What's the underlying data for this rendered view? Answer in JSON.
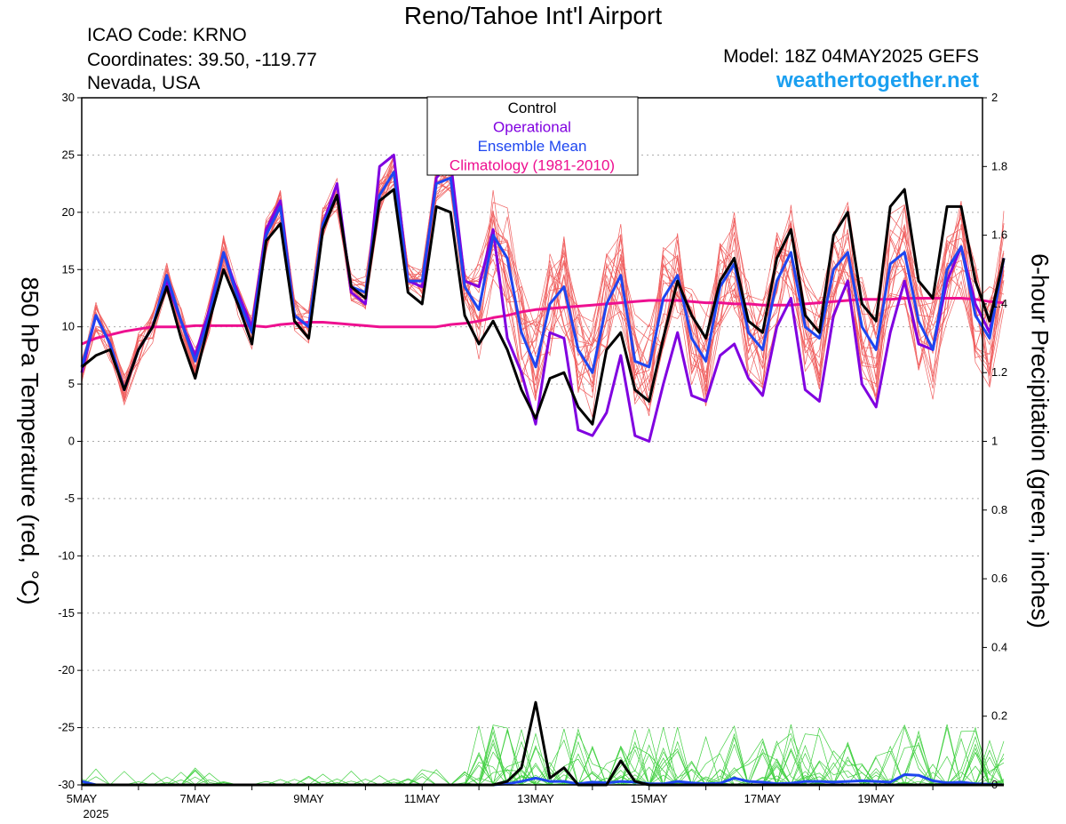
{
  "header": {
    "title": "Reno/Tahoe Int'l Airport",
    "icao": "ICAO Code: KRNO",
    "coordinates": "Coordinates: 39.50, -119.77",
    "region": "Nevada, USA",
    "model": "Model: 18Z 04MAY2025 GEFS",
    "site": "weathertogether.net"
  },
  "colors": {
    "control": "#000000",
    "operational": "#8000e0",
    "ensemble_mean": "#1e46f0",
    "climatology": "#ee1090",
    "members_temp": "#f06060",
    "members_precip": "#40d040",
    "site": "#1a9ff0"
  },
  "legend": [
    {
      "label": "Control",
      "color": "#000000"
    },
    {
      "label": "Operational",
      "color": "#8000e0"
    },
    {
      "label": "Ensemble Mean",
      "color": "#1e46f0"
    },
    {
      "label": "Climatology (1981-2010)",
      "color": "#ee1090"
    }
  ],
  "chart_data": {
    "type": "line",
    "ylabel": "850 hPa Temperature (red, °C)",
    "y2label": "6-hour Precipitation (green, inches)",
    "ylim": [
      -30,
      30
    ],
    "y2lim": [
      0,
      2
    ],
    "yticks": [
      "30",
      "25",
      "20",
      "15",
      "10",
      "5",
      "0",
      "-5",
      "-10",
      "-15",
      "-20",
      "-25",
      "-30"
    ],
    "y2ticks": [
      "2",
      "1.8",
      "1.6",
      "1.4",
      "1.2",
      "1",
      "0.8",
      "0.6",
      "0.4",
      "0.2",
      "0"
    ],
    "xlim_days": [
      0,
      15.875
    ],
    "xtick_labels": [
      "5MAY",
      "7MAY",
      "9MAY",
      "11MAY",
      "13MAY",
      "15MAY",
      "17MAY",
      "19MAY"
    ],
    "xtick_days": [
      0,
      2,
      4,
      6,
      8,
      10,
      12,
      14
    ],
    "xyear": "2025",
    "grid": true,
    "legend_position": "top-center",
    "time_step_hours": 6,
    "series": [
      {
        "name": "Control",
        "axis": "left",
        "values": [
          6.5,
          7.5,
          8,
          4.5,
          8,
          10,
          13.5,
          9,
          5.5,
          10.5,
          15,
          12,
          8.5,
          17.5,
          19,
          10.5,
          9,
          18.5,
          21.5,
          13.5,
          12.5,
          21,
          22,
          13,
          12,
          20.5,
          20,
          11,
          8.5,
          10.5,
          8,
          4.5,
          2,
          5.5,
          6,
          3,
          1.5,
          8,
          9.5,
          4.5,
          3.5,
          9,
          14,
          11,
          9,
          14,
          16,
          10.5,
          9.5,
          16,
          18.5,
          11,
          9.5,
          18,
          20,
          12,
          10.5,
          20.5,
          22,
          14,
          12.5,
          20.5,
          20.5,
          14,
          10.5,
          16
        ]
      },
      {
        "name": "Operational",
        "axis": "left",
        "values": [
          6,
          11,
          8.5,
          4.5,
          8,
          10,
          14,
          10.5,
          7.5,
          11.5,
          16.5,
          13,
          10,
          18.5,
          21,
          11,
          10,
          19,
          22.5,
          13,
          12,
          24,
          25,
          14,
          13.5,
          23,
          24.5,
          14,
          13.5,
          18.5,
          9,
          6,
          1.5,
          9.5,
          9,
          1,
          0.5,
          2.5,
          7.5,
          0.5,
          0,
          5,
          9.5,
          4,
          3.5,
          7.5,
          8.5,
          5.5,
          4,
          10,
          12.5,
          4.5,
          3.5,
          11,
          14,
          5,
          3,
          9.5,
          14,
          8.5,
          8,
          14,
          17,
          12,
          9.5,
          16
        ]
      },
      {
        "name": "Ensemble Mean",
        "axis": "left",
        "values": [
          6.5,
          11,
          8.5,
          4.5,
          8,
          10,
          14.5,
          10.5,
          7,
          11,
          16.5,
          12.5,
          9.5,
          18,
          20.5,
          11,
          10,
          19,
          21.5,
          13.5,
          13,
          21.5,
          23.5,
          14,
          14,
          22.5,
          23,
          13.5,
          11.5,
          18,
          16,
          9.5,
          6.5,
          12,
          13.5,
          8,
          6,
          12,
          14.5,
          7,
          6.5,
          12.5,
          14.5,
          9,
          7,
          13.5,
          15.5,
          9.5,
          8,
          14,
          16.5,
          10,
          9,
          15,
          16.5,
          10,
          8,
          15.5,
          16.5,
          10.5,
          8,
          15,
          17,
          11,
          9,
          16
        ]
      },
      {
        "name": "Climatology (1981-2010)",
        "axis": "left",
        "values": [
          8.5,
          9,
          9.3,
          9.6,
          9.8,
          10,
          10,
          10,
          10.1,
          10.1,
          10.1,
          10.1,
          10.1,
          10,
          10.2,
          10.3,
          10.4,
          10.4,
          10.3,
          10.2,
          10.1,
          10,
          10,
          10,
          10,
          10,
          10.2,
          10.3,
          10.5,
          10.8,
          11,
          11.3,
          11.5,
          11.6,
          11.7,
          11.8,
          11.9,
          12,
          12.1,
          12.2,
          12.3,
          12.3,
          12.3,
          12.2,
          12.1,
          12.1,
          12,
          12,
          11.9,
          11.9,
          11.9,
          12,
          12.1,
          12.2,
          12.3,
          12.4,
          12.4,
          12.4,
          12.5,
          12.5,
          12.5,
          12.5,
          12.5,
          12.4,
          12.2,
          12.1
        ]
      },
      {
        "name": "Control",
        "axis": "right",
        "values": [
          0,
          0,
          0,
          0,
          0,
          0,
          0,
          0,
          0,
          0,
          0,
          0,
          0,
          0,
          0,
          0,
          0,
          0,
          0,
          0,
          0,
          0,
          0,
          0,
          0,
          0,
          0,
          0,
          0,
          0,
          0.01,
          0.05,
          0.24,
          0.02,
          0.05,
          0,
          0,
          0,
          0.07,
          0.01,
          0,
          0,
          0,
          0,
          0,
          0,
          0,
          0,
          0,
          0,
          0,
          0,
          0,
          0,
          0,
          0,
          0,
          0,
          0,
          0,
          0,
          0,
          0,
          0,
          0,
          0
        ]
      },
      {
        "name": "Ensemble Mean",
        "axis": "right",
        "values": [
          0.01,
          0,
          0,
          0,
          0,
          0,
          0,
          0,
          0,
          0,
          0,
          0,
          0,
          0,
          0,
          0,
          0,
          0,
          0,
          0,
          0,
          0,
          0,
          0,
          0,
          0,
          0,
          0,
          0,
          0,
          0.003,
          0.01,
          0.02,
          0.01,
          0.01,
          0.003,
          0.008,
          0.006,
          0.01,
          0.008,
          0.003,
          0.003,
          0.01,
          0.006,
          0.003,
          0.005,
          0.02,
          0.01,
          0.008,
          0.003,
          0.005,
          0.01,
          0.01,
          0.008,
          0.01,
          0.012,
          0.01,
          0.008,
          0.03,
          0.028,
          0.012,
          0.006,
          0.008,
          0.003,
          0.002,
          0
        ]
      }
    ]
  }
}
